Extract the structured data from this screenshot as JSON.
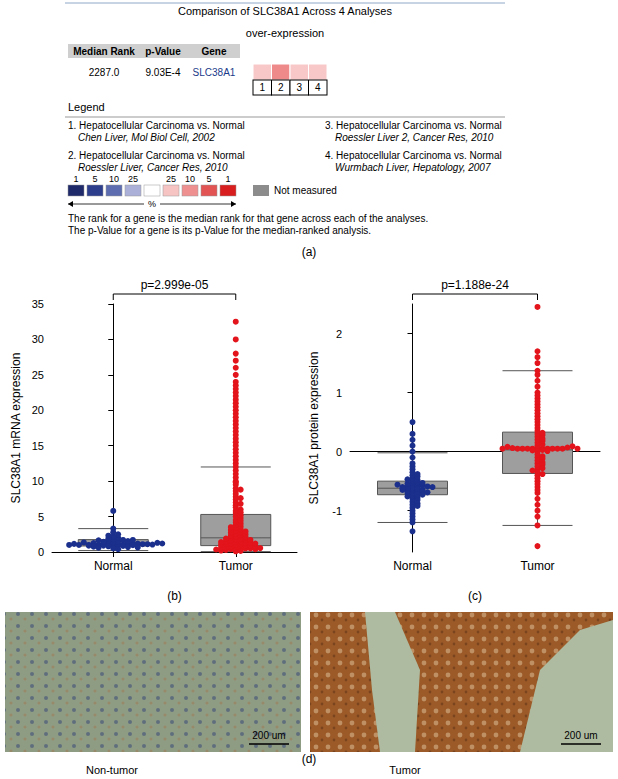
{
  "panel_a": {
    "caption": "(a)",
    "title": "Comparison of SLC38A1 Across 4 Analyses",
    "subtitle": "over-expression",
    "table": {
      "header": [
        "Median Rank",
        "p-Value",
        "Gene"
      ],
      "row": [
        "2287.0",
        "9.03E-4",
        "SLC38A1"
      ],
      "cells": [
        "1",
        "2",
        "3",
        "4"
      ],
      "cell_colors": [
        "#f8c8c8",
        "#ee8a8a",
        "#f8c8c8",
        "#f8c8c8"
      ]
    },
    "legend_title": "Legend",
    "analyses": [
      {
        "label": "1. Hepatocellular Carcinoma vs. Normal",
        "source": "Chen Liver, Mol Biol Cell, 2002"
      },
      {
        "label": "2. Hepatocellular Carcinoma vs. Normal",
        "source": "Roessler Liver, Cancer Res, 2010"
      },
      {
        "label": "3. Hepatocellular Carcinoma vs. Normal",
        "source": "Roessler Liver 2, Cancer Res, 2010"
      },
      {
        "label": "4. Hepatocellular Carcinoma vs. Normal",
        "source": "Wurmbach Liver, Hepatology, 2007"
      }
    ],
    "scale": {
      "under": [
        {
          "value": 1,
          "color": "#1f2a6b"
        },
        {
          "value": 5,
          "color": "#2c3e8c"
        },
        {
          "value": 10,
          "color": "#5e6db0"
        },
        {
          "value": 25,
          "color": "#aab0d8"
        }
      ],
      "neutral_color": "#ffffff",
      "over": [
        {
          "value": 25,
          "color": "#f7c4c4"
        },
        {
          "value": 10,
          "color": "#ef9090"
        },
        {
          "value": 5,
          "color": "#e25454"
        },
        {
          "value": 1,
          "color": "#d81e1e"
        }
      ],
      "unit": "%",
      "not_measured": {
        "label": "Not measured",
        "color": "#8c8c8c"
      }
    },
    "notes": [
      "The rank for a gene is the median rank for that gene across each of the analyses.",
      "The p-Value for a gene is its p-Value for the median-ranked analysis."
    ]
  },
  "chart_data": [
    {
      "type": "boxplot",
      "caption": "(b)",
      "ylabel": "SLC38A1 mRNA expression",
      "annotation": "p=2.999e-05",
      "categories": [
        "Normal",
        "Tumor"
      ],
      "colors": [
        "#1b2f8c",
        "#e3141b"
      ],
      "ylim": [
        0,
        35
      ],
      "yticks": [
        0,
        5,
        10,
        15,
        20,
        25,
        30,
        35
      ],
      "grid": false,
      "box": [
        [
          0.2,
          0.85,
          1.1,
          1.75,
          3.3
        ],
        [
          0.05,
          0.9,
          2.0,
          5.3,
          12.0
        ]
      ],
      "points": [
        [
          1.0,
          1.1,
          0.9,
          1.2,
          1.05,
          0.95,
          1.15,
          1.3,
          0.8,
          1.0,
          1.1,
          1.25,
          0.85,
          0.9,
          1.4,
          1.5,
          1.6,
          1.7,
          1.8,
          1.2,
          1.0,
          1.1,
          0.7,
          0.6,
          0.5,
          1.35,
          1.45,
          2.0,
          2.2,
          2.5,
          1.9,
          1.1,
          1.0,
          0.95,
          1.05,
          1.15,
          2.8,
          3.3,
          1.3,
          0.75,
          0.65,
          1.55,
          1.65,
          0.9,
          1.0,
          1.2,
          2.3,
          1.7,
          5.8,
          0.4
        ],
        [
          0.2,
          0.3,
          0.4,
          0.5,
          0.6,
          0.7,
          0.8,
          0.9,
          1.0,
          1.1,
          1.2,
          1.3,
          1.4,
          1.5,
          1.6,
          1.7,
          1.8,
          1.9,
          2.0,
          2.1,
          0.1,
          0.3,
          0.5,
          0.7,
          0.9,
          1.1,
          1.3,
          1.5,
          1.7,
          1.9,
          2.2,
          2.4,
          2.6,
          2.8,
          3.0,
          3.2,
          3.4,
          3.6,
          3.8,
          4.0,
          2.3,
          2.5,
          2.7,
          2.9,
          3.1,
          3.5,
          4.2,
          4.5,
          4.8,
          5.0,
          5.2,
          5.5,
          5.8,
          6.0,
          6.3,
          6.6,
          7.0,
          7.4,
          7.8,
          8.2,
          8.6,
          9.0,
          9.5,
          10.0,
          10.5,
          11.0,
          11.5,
          12.0,
          4.4,
          5.6,
          6.8,
          7.6,
          8.8,
          9.8,
          12.5,
          13.0,
          13.5,
          14.0,
          14.5,
          15.0,
          15.5,
          16.0,
          16.5,
          17.0,
          17.5,
          18.0,
          18.5,
          19.0,
          19.5,
          20.0,
          20.5,
          21.0,
          21.5,
          22.0,
          22.5,
          23.0,
          23.5,
          24.0,
          25.0,
          26.0,
          27.0,
          28.0,
          30.0,
          32.5,
          0.2,
          0.4,
          0.6,
          0.8,
          1.0,
          1.2,
          1.4,
          0.15,
          0.35,
          0.55
        ]
      ]
    },
    {
      "type": "boxplot",
      "caption": "(c)",
      "ylabel": "SLC38A1 protein expression",
      "annotation": "p=1.188e-24",
      "categories": [
        "Normal",
        "Tumor"
      ],
      "colors": [
        "#1b2f8c",
        "#e3141b"
      ],
      "ylim": [
        -1.7,
        2.5
      ],
      "yticks": [
        -1,
        0,
        1,
        2
      ],
      "grid": false,
      "box": [
        [
          -1.2,
          -0.73,
          -0.62,
          -0.5,
          -0.02
        ],
        [
          -1.25,
          -0.37,
          0.03,
          0.33,
          1.37
        ]
      ],
      "points": [
        [
          -0.6,
          -0.65,
          -0.55,
          -0.7,
          -0.62,
          -0.58,
          -0.68,
          -0.5,
          -0.75,
          -0.8,
          -0.45,
          -0.4,
          -0.85,
          -0.9,
          -0.6,
          -0.63,
          -0.57,
          -0.72,
          -0.66,
          -0.52,
          -0.48,
          -0.78,
          -0.82,
          -0.95,
          -1.0,
          -1.05,
          -1.1,
          -1.2,
          -1.35,
          -0.35,
          -0.3,
          -0.25,
          -0.2,
          -0.1,
          0.0,
          0.1,
          0.2,
          0.3,
          0.5,
          -0.6,
          -0.61,
          -0.64,
          -0.59,
          -0.67,
          -0.7,
          -0.54,
          -0.56,
          -0.73,
          -0.76,
          -0.88,
          -0.42,
          -0.38,
          -0.92,
          -1.15,
          -0.65,
          -0.6,
          -0.69,
          -0.53,
          -0.47,
          -0.62
        ],
        [
          0.05,
          0.05,
          0.05,
          0.05,
          0.05,
          0.05,
          0.05,
          0.05,
          0.05,
          0.05,
          0.04,
          0.06,
          0.03,
          0.07,
          0.0,
          -0.1,
          -0.2,
          -0.3,
          -0.4,
          -0.5,
          -0.6,
          -0.7,
          -0.8,
          -0.9,
          -1.0,
          -1.1,
          -1.25,
          -1.6,
          -0.35,
          -0.45,
          -0.25,
          -0.15,
          0.1,
          0.15,
          0.2,
          0.25,
          0.3,
          0.35,
          0.4,
          0.45,
          0.5,
          0.6,
          0.7,
          0.8,
          0.9,
          1.0,
          1.1,
          1.2,
          1.3,
          1.37,
          1.5,
          1.6,
          1.7,
          2.45,
          0.12,
          0.18,
          0.22,
          0.28,
          0.32,
          -0.05,
          -0.08,
          -0.12,
          -0.18,
          -0.22,
          -0.28,
          -0.32,
          -0.38,
          0.55,
          0.65,
          0.75,
          0.85,
          0.95,
          -0.55,
          -0.65,
          0.02,
          0.08,
          0.09,
          0.01,
          0.05,
          0.05
        ]
      ]
    }
  ],
  "panel_d": {
    "caption": "(d)",
    "images": [
      {
        "label": "Non-tumor",
        "scale_bar": "200 um"
      },
      {
        "label": "Tumor",
        "scale_bar": "200 um"
      }
    ]
  }
}
